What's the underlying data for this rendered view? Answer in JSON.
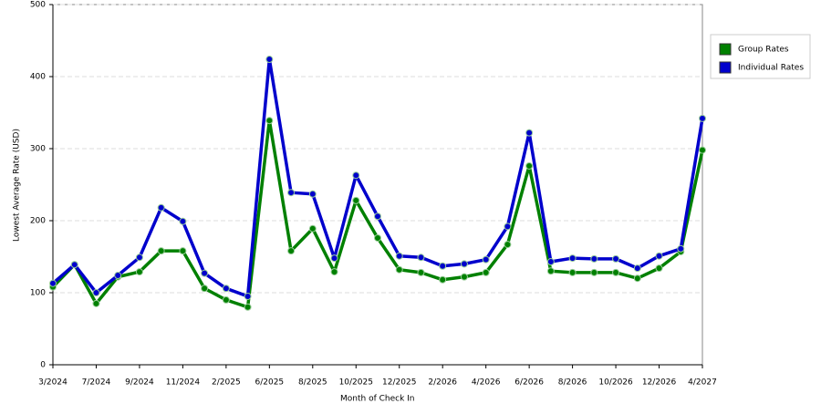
{
  "chart_data": {
    "type": "line",
    "x_label": "Month of Check In",
    "y_label": "Lowest Average Rate (USD)",
    "categories": [
      "3/2024",
      null,
      "7/2024",
      null,
      "9/2024",
      null,
      "11/2024",
      null,
      "2/2025",
      null,
      "6/2025",
      null,
      "8/2025",
      null,
      "10/2025",
      null,
      "12/2025",
      null,
      "2/2026",
      null,
      "4/2026",
      null,
      "6/2026",
      null,
      "8/2026",
      null,
      "10/2026",
      null,
      "12/2026",
      null,
      "4/2027"
    ],
    "series": [
      {
        "name": "Group Rates",
        "color": "#008000",
        "values": [
          108,
          139,
          85,
          122,
          129,
          158,
          158,
          106,
          90,
          80,
          339,
          158,
          189,
          129,
          228,
          176,
          132,
          128,
          118,
          122,
          128,
          167,
          276,
          130,
          128,
          128,
          128,
          120,
          134,
          157,
          298
        ]
      },
      {
        "name": "Individual Rates",
        "color": "#0000cc",
        "values": [
          113,
          139,
          100,
          124,
          149,
          218,
          199,
          127,
          106,
          95,
          424,
          239,
          237,
          148,
          263,
          206,
          151,
          149,
          137,
          140,
          146,
          192,
          322,
          143,
          148,
          147,
          147,
          134,
          151,
          161,
          342
        ]
      }
    ],
    "ylim": [
      0,
      500
    ],
    "yticks": [
      0,
      100,
      200,
      300,
      400,
      500
    ],
    "grid": true,
    "legend": "right"
  }
}
